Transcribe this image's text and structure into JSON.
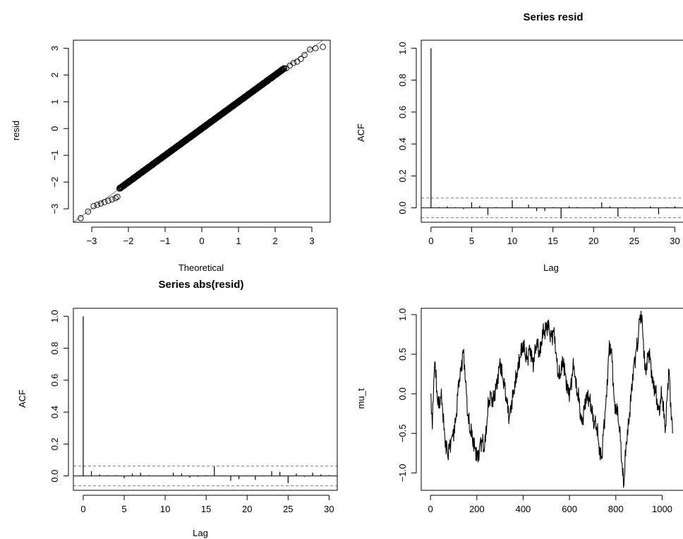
{
  "chart_data": [
    {
      "type": "scatter",
      "subtype": "qq-plot",
      "title": "",
      "xlabel": "Theoretical",
      "ylabel": "resid",
      "xlim": [
        -3.5,
        3.5
      ],
      "ylim": [
        -3.5,
        3.3
      ],
      "xticks": [
        "−3",
        "−2",
        "−1",
        "0",
        "1",
        "2",
        "3"
      ],
      "yticks": [
        "−3",
        "−2",
        "−1",
        "0",
        "1",
        "2",
        "3"
      ],
      "reference_line": {
        "intercept": 0,
        "slope": 1
      },
      "tail_points": [
        {
          "x": -3.3,
          "y": -3.35
        },
        {
          "x": -3.1,
          "y": -3.1
        },
        {
          "x": -2.95,
          "y": -2.9
        },
        {
          "x": -2.85,
          "y": -2.85
        },
        {
          "x": -2.75,
          "y": -2.8
        },
        {
          "x": -2.65,
          "y": -2.75
        },
        {
          "x": -2.55,
          "y": -2.7
        },
        {
          "x": -2.45,
          "y": -2.65
        },
        {
          "x": -2.35,
          "y": -2.6
        },
        {
          "x": -2.3,
          "y": -2.55
        },
        {
          "x": 2.3,
          "y": 2.25
        },
        {
          "x": 2.4,
          "y": 2.35
        },
        {
          "x": 2.5,
          "y": 2.45
        },
        {
          "x": 2.6,
          "y": 2.5
        },
        {
          "x": 2.7,
          "y": 2.6
        },
        {
          "x": 2.8,
          "y": 2.75
        },
        {
          "x": 2.95,
          "y": 2.95
        },
        {
          "x": 3.1,
          "y": 3.0
        },
        {
          "x": 3.3,
          "y": 3.05
        }
      ],
      "body_range": [
        -2.25,
        2.25
      ],
      "grid": false
    },
    {
      "type": "bar",
      "subtype": "acf",
      "title": "Series  resid",
      "xlabel": "Lag",
      "ylabel": "ACF",
      "xlim": [
        -1.2,
        31
      ],
      "ylim": [
        -0.09,
        1.05
      ],
      "xticks": [
        "0",
        "5",
        "10",
        "15",
        "20",
        "25",
        "30"
      ],
      "yticks": [
        "0.0",
        "0.2",
        "0.4",
        "0.6",
        "0.8",
        "1.0"
      ],
      "lags": [
        0,
        1,
        2,
        3,
        4,
        5,
        6,
        7,
        8,
        9,
        10,
        11,
        12,
        13,
        14,
        15,
        16,
        17,
        18,
        19,
        20,
        21,
        22,
        23,
        24,
        25,
        26,
        27,
        28,
        29,
        30
      ],
      "values": [
        1.0,
        0.005,
        0.01,
        0.004,
        -0.008,
        0.035,
        0.012,
        -0.045,
        0.005,
        -0.003,
        0.048,
        0.003,
        0.02,
        -0.02,
        -0.02,
        0.004,
        -0.065,
        0.01,
        0.005,
        0.003,
        -0.005,
        0.035,
        0.01,
        -0.055,
        0.005,
        -0.004,
        0.003,
        0.01,
        -0.04,
        0.005,
        0.01
      ],
      "ci": 0.062,
      "grid": false
    },
    {
      "type": "bar",
      "subtype": "acf",
      "title": "Series  abs(resid)",
      "xlabel": "Lag",
      "ylabel": "ACF",
      "xlim": [
        -1.2,
        31
      ],
      "ylim": [
        -0.09,
        1.05
      ],
      "xticks": [
        "0",
        "5",
        "10",
        "15",
        "20",
        "25",
        "30"
      ],
      "yticks": [
        "0.0",
        "0.2",
        "0.4",
        "0.6",
        "0.8",
        "1.0"
      ],
      "lags": [
        0,
        1,
        2,
        3,
        4,
        5,
        6,
        7,
        8,
        9,
        10,
        11,
        12,
        13,
        14,
        15,
        16,
        17,
        18,
        19,
        20,
        21,
        22,
        23,
        24,
        25,
        26,
        27,
        28,
        29,
        30
      ],
      "values": [
        1.0,
        0.03,
        0.01,
        0.005,
        0.005,
        -0.015,
        0.015,
        0.02,
        0.005,
        0.003,
        0.003,
        0.02,
        0.015,
        -0.01,
        -0.005,
        0.005,
        0.06,
        0.003,
        -0.03,
        -0.02,
        0.003,
        -0.025,
        0.003,
        0.03,
        0.025,
        -0.045,
        0.015,
        -0.005,
        0.02,
        0.01,
        0.005
      ],
      "ci": 0.062,
      "grid": false
    },
    {
      "type": "line",
      "title": "",
      "xlabel": "",
      "ylabel": "mu_t",
      "xlim": [
        -40,
        1090
      ],
      "ylim": [
        -1.22,
        1.08
      ],
      "xticks": [
        "0",
        "200",
        "400",
        "600",
        "800",
        "1000"
      ],
      "yticks": [
        "−1.0",
        "−0.5",
        "0.0",
        "0.5",
        "1.0"
      ],
      "anchors": [
        [
          0,
          0.0
        ],
        [
          8,
          -0.45
        ],
        [
          18,
          0.4
        ],
        [
          30,
          -0.1
        ],
        [
          45,
          -0.05
        ],
        [
          60,
          -0.45
        ],
        [
          75,
          -0.8
        ],
        [
          90,
          -0.55
        ],
        [
          110,
          -0.3
        ],
        [
          125,
          0.2
        ],
        [
          140,
          0.55
        ],
        [
          155,
          0.0
        ],
        [
          170,
          -0.5
        ],
        [
          185,
          -0.55
        ],
        [
          200,
          -0.85
        ],
        [
          215,
          -0.6
        ],
        [
          230,
          -0.7
        ],
        [
          245,
          -0.3
        ],
        [
          260,
          0.0
        ],
        [
          275,
          -0.1
        ],
        [
          290,
          0.25
        ],
        [
          300,
          0.45
        ],
        [
          320,
          0.1
        ],
        [
          340,
          -0.3
        ],
        [
          360,
          0.0
        ],
        [
          380,
          0.3
        ],
        [
          395,
          0.65
        ],
        [
          410,
          0.45
        ],
        [
          425,
          0.55
        ],
        [
          440,
          0.4
        ],
        [
          455,
          0.6
        ],
        [
          470,
          0.55
        ],
        [
          485,
          0.7
        ],
        [
          500,
          0.9
        ],
        [
          515,
          0.75
        ],
        [
          530,
          0.8
        ],
        [
          545,
          0.4
        ],
        [
          560,
          0.2
        ],
        [
          575,
          0.45
        ],
        [
          590,
          0.0
        ],
        [
          605,
          0.1
        ],
        [
          620,
          0.35
        ],
        [
          635,
          0.0
        ],
        [
          650,
          -0.35
        ],
        [
          665,
          -0.2
        ],
        [
          680,
          0.05
        ],
        [
          695,
          -0.25
        ],
        [
          710,
          -0.35
        ],
        [
          725,
          -0.6
        ],
        [
          740,
          -0.8
        ],
        [
          755,
          -0.2
        ],
        [
          770,
          0.5
        ],
        [
          780,
          0.55
        ],
        [
          795,
          -0.1
        ],
        [
          810,
          -0.35
        ],
        [
          820,
          -0.6
        ],
        [
          835,
          -1.15
        ],
        [
          850,
          -0.45
        ],
        [
          865,
          -0.1
        ],
        [
          880,
          0.45
        ],
        [
          895,
          0.6
        ],
        [
          905,
          1.0
        ],
        [
          915,
          0.85
        ],
        [
          925,
          0.3
        ],
        [
          940,
          0.5
        ],
        [
          955,
          0.3
        ],
        [
          970,
          0.0
        ],
        [
          985,
          -0.2
        ],
        [
          1000,
          -0.05
        ],
        [
          1015,
          -0.4
        ],
        [
          1030,
          0.3
        ],
        [
          1045,
          -0.5
        ]
      ],
      "grid": false
    }
  ]
}
